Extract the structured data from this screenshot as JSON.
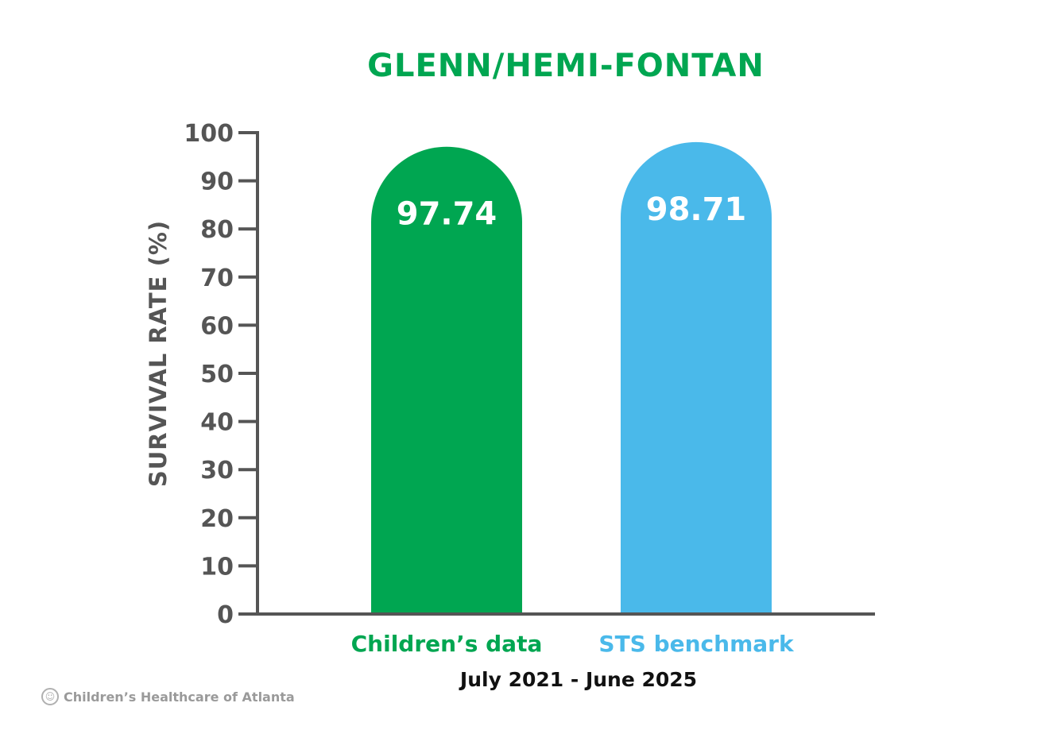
{
  "chart_data": {
    "type": "bar",
    "title": "GLENN/HEMI-FONTAN",
    "ylabel": "SURVIVAL RATE (%)",
    "xlabel": "July 2021 - June 2025",
    "ylim": [
      0,
      100
    ],
    "yticks": [
      0,
      10,
      20,
      30,
      40,
      50,
      60,
      70,
      80,
      90,
      100
    ],
    "categories": [
      "Children’s data",
      "STS benchmark"
    ],
    "values": [
      97.74,
      98.71
    ],
    "data_labels": [
      "97.74",
      "98.71"
    ],
    "colors": [
      "#00a651",
      "#4ab9ea"
    ],
    "title_color": "#00a651",
    "axis_color": "#555555",
    "grid": false,
    "legend": "none"
  },
  "footer": {
    "logo_text": "Children’s Healthcare of Atlanta",
    "logo_icon": "childrens-healthcare-logo-icon"
  }
}
